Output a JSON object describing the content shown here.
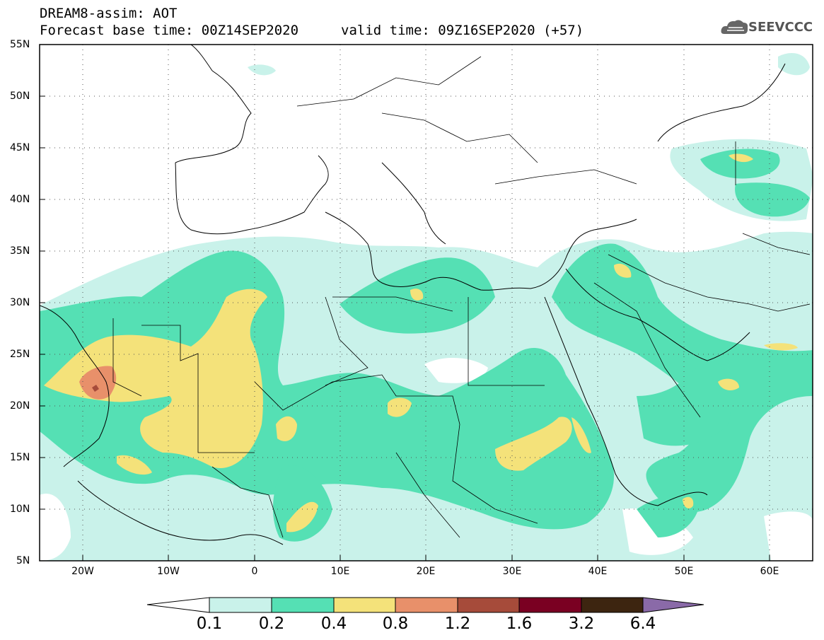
{
  "header": {
    "title_line1": "DREAM8-assim: AOT",
    "base_time": "Forecast base time: 00Z14SEP2020",
    "valid_time": "valid time: 09Z16SEP2020 (+57)",
    "logo_text": "SEEVCCC"
  },
  "axes": {
    "lat_labels": [
      "55N",
      "50N",
      "45N",
      "40N",
      "35N",
      "30N",
      "25N",
      "20N",
      "15N",
      "10N",
      "5N"
    ],
    "lon_labels": [
      "20W",
      "10W",
      "0",
      "10E",
      "20E",
      "30E",
      "40E",
      "50E",
      "60E"
    ]
  },
  "colorbar": {
    "labels": [
      "0.1",
      "0.2",
      "0.4",
      "0.8",
      "1.2",
      "1.6",
      "3.2",
      "6.4"
    ],
    "colors": [
      "#ffffff",
      "#c9f2ea",
      "#55e0b4",
      "#f4e27a",
      "#e8906a",
      "#a64b3a",
      "#7a0022",
      "#3d2510",
      "#8a6aa8"
    ]
  },
  "palette": {
    "level1": "#c9f2ea",
    "level2": "#55e0b4",
    "level3": "#f4e27a",
    "level4": "#e8906a",
    "level5": "#a64b3a"
  }
}
